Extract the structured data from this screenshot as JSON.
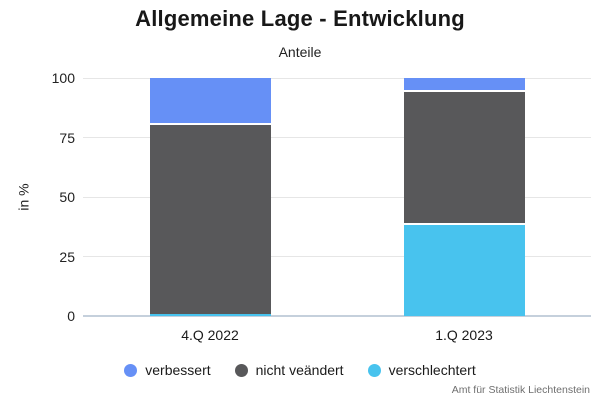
{
  "source": "Amt für Statistik Liechtenstein",
  "chart_data": {
    "type": "bar",
    "stacked": true,
    "title": "Allgemeine Lage - Entwicklung",
    "subtitle": "Anteile",
    "ylabel": "in %",
    "ylim": [
      0,
      100
    ],
    "yticks": [
      0,
      25,
      50,
      75,
      100
    ],
    "grid": true,
    "legend_position": "bottom",
    "categories": [
      "4.Q 2022",
      "1.Q 2023"
    ],
    "series": [
      {
        "name": "verbessert",
        "color": "#6690F6",
        "values": [
          19,
          5
        ]
      },
      {
        "name": "nicht veändert",
        "color": "#58585A",
        "values": [
          80,
          56
        ]
      },
      {
        "name": "verschlechtert",
        "color": "#48C3EE",
        "values": [
          1,
          39
        ]
      }
    ],
    "colors": {
      "gridline": "#E6E6E6",
      "zero_line": "#C5D0DC",
      "separator": "#FFFFFF"
    }
  }
}
